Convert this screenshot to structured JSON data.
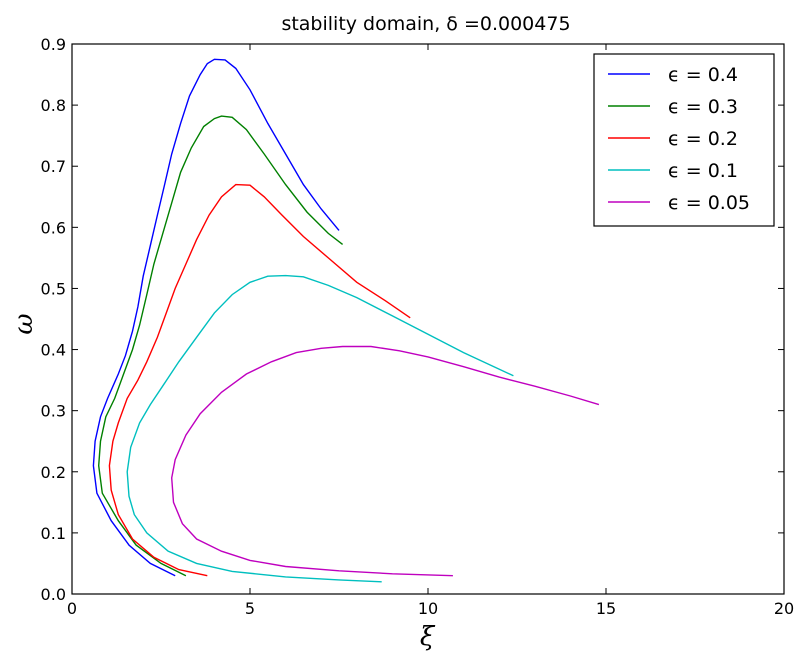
{
  "chart_data": {
    "type": "line",
    "title": "stability domain, δ =0.000475",
    "xlabel": "ξ",
    "ylabel": "ω",
    "xlim": [
      0,
      20
    ],
    "ylim": [
      0,
      0.9
    ],
    "xticks": [
      0,
      5,
      10,
      15,
      20
    ],
    "yticks": [
      0.0,
      0.1,
      0.2,
      0.3,
      0.4,
      0.5,
      0.6,
      0.7,
      0.8,
      0.9
    ],
    "xtick_labels": [
      "0",
      "5",
      "10",
      "15",
      "20"
    ],
    "ytick_labels": [
      "0.0",
      "0.1",
      "0.2",
      "0.3",
      "0.4",
      "0.5",
      "0.6",
      "0.7",
      "0.8",
      "0.9"
    ],
    "grid": false,
    "legend_position": "top-right",
    "series": [
      {
        "name": "ϵ = 0.4",
        "color": "#0000ff",
        "points": [
          [
            2.9,
            0.03
          ],
          [
            2.2,
            0.05
          ],
          [
            1.6,
            0.08
          ],
          [
            1.1,
            0.12
          ],
          [
            0.7,
            0.165
          ],
          [
            0.6,
            0.21
          ],
          [
            0.65,
            0.25
          ],
          [
            0.8,
            0.29
          ],
          [
            1.0,
            0.32
          ],
          [
            1.3,
            0.36
          ],
          [
            1.5,
            0.39
          ],
          [
            1.7,
            0.43
          ],
          [
            1.85,
            0.47
          ],
          [
            2.0,
            0.52
          ],
          [
            2.2,
            0.57
          ],
          [
            2.4,
            0.62
          ],
          [
            2.6,
            0.67
          ],
          [
            2.8,
            0.72
          ],
          [
            3.05,
            0.77
          ],
          [
            3.3,
            0.815
          ],
          [
            3.6,
            0.85
          ],
          [
            3.8,
            0.868
          ],
          [
            4.0,
            0.875
          ],
          [
            4.3,
            0.874
          ],
          [
            4.6,
            0.86
          ],
          [
            5.0,
            0.825
          ],
          [
            5.5,
            0.77
          ],
          [
            6.0,
            0.72
          ],
          [
            6.5,
            0.67
          ],
          [
            7.0,
            0.63
          ],
          [
            7.5,
            0.595
          ]
        ]
      },
      {
        "name": "ϵ = 0.3",
        "color": "#008000",
        "points": [
          [
            3.2,
            0.03
          ],
          [
            2.5,
            0.05
          ],
          [
            1.8,
            0.08
          ],
          [
            1.3,
            0.12
          ],
          [
            0.85,
            0.165
          ],
          [
            0.75,
            0.21
          ],
          [
            0.8,
            0.25
          ],
          [
            0.95,
            0.29
          ],
          [
            1.2,
            0.32
          ],
          [
            1.45,
            0.36
          ],
          [
            1.7,
            0.4
          ],
          [
            1.9,
            0.44
          ],
          [
            2.1,
            0.49
          ],
          [
            2.3,
            0.54
          ],
          [
            2.55,
            0.59
          ],
          [
            2.8,
            0.64
          ],
          [
            3.05,
            0.69
          ],
          [
            3.35,
            0.73
          ],
          [
            3.7,
            0.765
          ],
          [
            4.0,
            0.778
          ],
          [
            4.2,
            0.782
          ],
          [
            4.5,
            0.78
          ],
          [
            4.9,
            0.76
          ],
          [
            5.4,
            0.72
          ],
          [
            6.0,
            0.67
          ],
          [
            6.6,
            0.625
          ],
          [
            7.2,
            0.59
          ],
          [
            7.6,
            0.572
          ]
        ]
      },
      {
        "name": "ϵ = 0.2",
        "color": "#ff0000",
        "points": [
          [
            3.8,
            0.03
          ],
          [
            3.0,
            0.04
          ],
          [
            2.3,
            0.06
          ],
          [
            1.7,
            0.09
          ],
          [
            1.3,
            0.13
          ],
          [
            1.1,
            0.17
          ],
          [
            1.05,
            0.21
          ],
          [
            1.15,
            0.25
          ],
          [
            1.3,
            0.28
          ],
          [
            1.55,
            0.32
          ],
          [
            1.85,
            0.35
          ],
          [
            2.1,
            0.38
          ],
          [
            2.4,
            0.42
          ],
          [
            2.65,
            0.46
          ],
          [
            2.9,
            0.5
          ],
          [
            3.2,
            0.54
          ],
          [
            3.5,
            0.58
          ],
          [
            3.85,
            0.62
          ],
          [
            4.2,
            0.65
          ],
          [
            4.6,
            0.67
          ],
          [
            5.0,
            0.669
          ],
          [
            5.4,
            0.65
          ],
          [
            5.9,
            0.62
          ],
          [
            6.5,
            0.585
          ],
          [
            7.2,
            0.55
          ],
          [
            8.0,
            0.51
          ],
          [
            8.8,
            0.48
          ],
          [
            9.5,
            0.452
          ]
        ]
      },
      {
        "name": "ϵ = 0.1",
        "color": "#00bfbf",
        "points": [
          [
            8.7,
            0.02
          ],
          [
            7.5,
            0.023
          ],
          [
            6.0,
            0.028
          ],
          [
            4.5,
            0.037
          ],
          [
            3.5,
            0.05
          ],
          [
            2.7,
            0.07
          ],
          [
            2.1,
            0.1
          ],
          [
            1.75,
            0.13
          ],
          [
            1.6,
            0.16
          ],
          [
            1.55,
            0.2
          ],
          [
            1.65,
            0.24
          ],
          [
            1.9,
            0.28
          ],
          [
            2.2,
            0.31
          ],
          [
            2.6,
            0.345
          ],
          [
            3.0,
            0.38
          ],
          [
            3.5,
            0.42
          ],
          [
            4.0,
            0.46
          ],
          [
            4.5,
            0.49
          ],
          [
            5.0,
            0.51
          ],
          [
            5.5,
            0.52
          ],
          [
            6.0,
            0.521
          ],
          [
            6.5,
            0.519
          ],
          [
            7.2,
            0.505
          ],
          [
            8.0,
            0.485
          ],
          [
            9.0,
            0.455
          ],
          [
            10.0,
            0.425
          ],
          [
            11.0,
            0.395
          ],
          [
            12.4,
            0.357
          ]
        ]
      },
      {
        "name": "ϵ = 0.05",
        "color": "#bf00bf",
        "points": [
          [
            10.7,
            0.03
          ],
          [
            9.0,
            0.033
          ],
          [
            7.5,
            0.038
          ],
          [
            6.0,
            0.045
          ],
          [
            5.0,
            0.055
          ],
          [
            4.2,
            0.07
          ],
          [
            3.5,
            0.09
          ],
          [
            3.1,
            0.115
          ],
          [
            2.85,
            0.15
          ],
          [
            2.8,
            0.19
          ],
          [
            2.9,
            0.22
          ],
          [
            3.2,
            0.26
          ],
          [
            3.6,
            0.295
          ],
          [
            4.2,
            0.33
          ],
          [
            4.9,
            0.36
          ],
          [
            5.6,
            0.38
          ],
          [
            6.3,
            0.395
          ],
          [
            7.0,
            0.402
          ],
          [
            7.6,
            0.405
          ],
          [
            8.4,
            0.405
          ],
          [
            9.2,
            0.398
          ],
          [
            10.0,
            0.388
          ],
          [
            11.0,
            0.372
          ],
          [
            12.0,
            0.355
          ],
          [
            13.0,
            0.34
          ],
          [
            14.0,
            0.324
          ],
          [
            14.8,
            0.31
          ]
        ]
      }
    ]
  }
}
